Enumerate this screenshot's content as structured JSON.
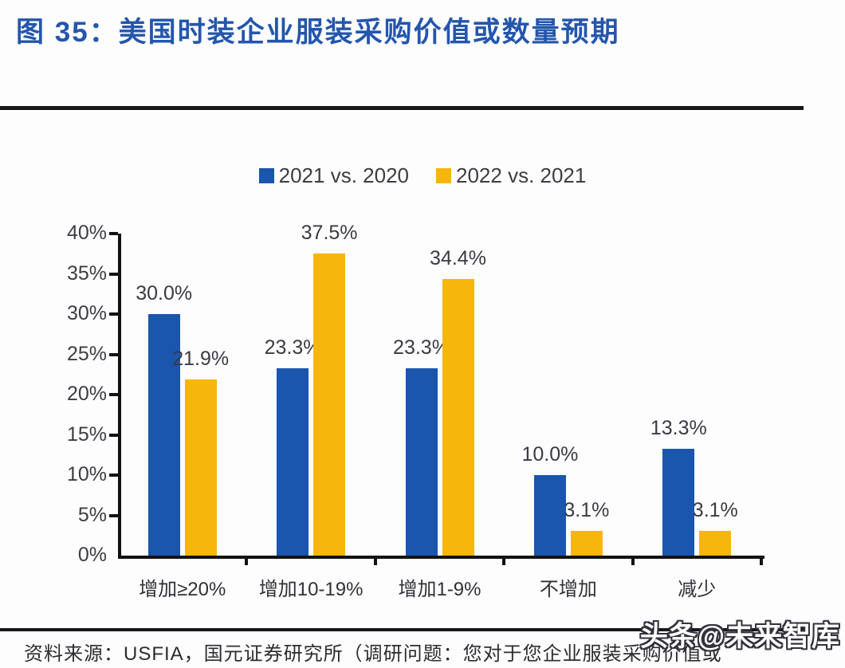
{
  "figure": {
    "title": "图 35：美国时装企业服装采购价值或数量预期",
    "source_note": "资料来源：USFIA，国元证券研究所（调研问题：您对于您企业服装采购价值或",
    "watermark": "头条@未来智库"
  },
  "chart_data": {
    "type": "bar",
    "title": "美国时装企业服装采购价值或数量预期",
    "categories": [
      "增加≥20%",
      "增加10-19%",
      "增加1-9%",
      "不增加",
      "减少"
    ],
    "series": [
      {
        "name": "2021 vs. 2020",
        "color": "#1A55AE",
        "values": [
          30.0,
          23.3,
          23.3,
          10.0,
          13.3
        ],
        "labels": [
          "30.0%",
          "23.3%",
          "23.3%",
          "10.0%",
          "13.3%"
        ]
      },
      {
        "name": "2022 vs. 2021",
        "color": "#F7B60B",
        "values": [
          21.9,
          37.5,
          34.4,
          3.1,
          3.1
        ],
        "labels": [
          "21.9%",
          "37.5%",
          "34.4%",
          "3.1%",
          "3.1%"
        ]
      }
    ],
    "ylim": [
      0,
      40
    ],
    "yticks": [
      0,
      5,
      10,
      15,
      20,
      25,
      30,
      35,
      40
    ],
    "ytick_labels": [
      "0%",
      "5%",
      "10%",
      "15%",
      "20%",
      "25%",
      "30%",
      "35%",
      "40%"
    ],
    "grid": false,
    "legend_position": "top-center",
    "xlabel": "",
    "ylabel": ""
  },
  "colors": {
    "title_blue": "#2456AB",
    "bar_blue": "#1A55AE",
    "bar_yellow": "#F7B60B",
    "axis_black": "#121212",
    "text_dark": "#3a3a44"
  }
}
